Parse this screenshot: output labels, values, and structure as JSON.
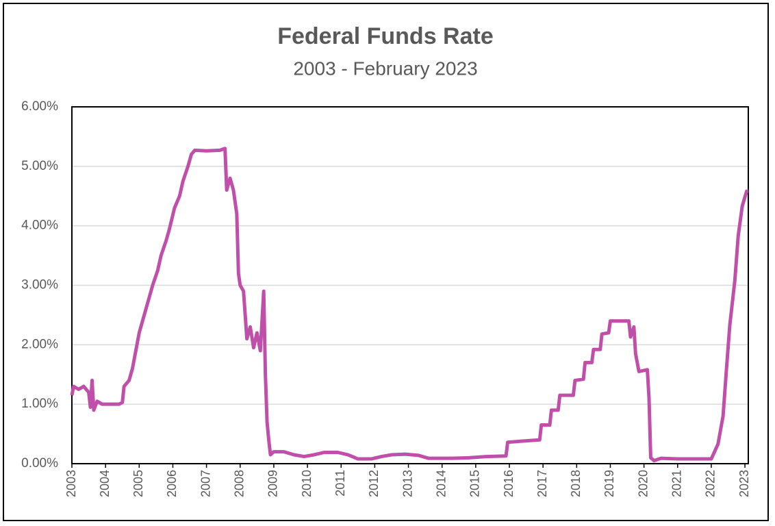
{
  "chart_data": {
    "type": "line",
    "title": "Federal Funds Rate",
    "subtitle": "2003 - February 2023",
    "x": [
      2003.0,
      2003.05,
      2003.2,
      2003.35,
      2003.5,
      2003.55,
      2003.6,
      2003.65,
      2003.75,
      2003.9,
      2004.2,
      2004.4,
      2004.5,
      2004.55,
      2004.7,
      2004.8,
      2004.9,
      2005.0,
      2005.1,
      2005.2,
      2005.3,
      2005.4,
      2005.55,
      2005.65,
      2005.8,
      2005.9,
      2006.05,
      2006.2,
      2006.3,
      2006.45,
      2006.55,
      2006.65,
      2007.0,
      2007.4,
      2007.55,
      2007.6,
      2007.7,
      2007.8,
      2007.9,
      2007.95,
      2008.0,
      2008.1,
      2008.2,
      2008.3,
      2008.4,
      2008.5,
      2008.6,
      2008.7,
      2008.75,
      2008.8,
      2008.85,
      2008.9,
      2009.0,
      2009.3,
      2009.6,
      2009.9,
      2010.2,
      2010.5,
      2010.9,
      2011.2,
      2011.5,
      2011.9,
      2012.2,
      2012.5,
      2012.9,
      2013.3,
      2013.6,
      2013.9,
      2014.3,
      2014.8,
      2015.3,
      2015.9,
      2015.95,
      2016.4,
      2016.9,
      2016.95,
      2017.2,
      2017.25,
      2017.45,
      2017.5,
      2017.9,
      2017.95,
      2018.2,
      2018.25,
      2018.45,
      2018.5,
      2018.7,
      2018.75,
      2018.95,
      2019.0,
      2019.55,
      2019.6,
      2019.7,
      2019.75,
      2019.85,
      2020.1,
      2020.15,
      2020.2,
      2020.3,
      2020.5,
      2021.0,
      2021.5,
      2022.0,
      2022.2,
      2022.35,
      2022.45,
      2022.55,
      2022.7,
      2022.8,
      2022.92,
      2023.05,
      2023.1
    ],
    "series": [
      {
        "name": "Federal Funds Rate",
        "color": "#bf4fa8",
        "values": [
          1.15,
          1.3,
          1.25,
          1.3,
          1.2,
          0.95,
          1.4,
          0.9,
          1.05,
          1.0,
          1.0,
          1.0,
          1.03,
          1.3,
          1.4,
          1.6,
          1.9,
          2.2,
          2.4,
          2.6,
          2.8,
          3.0,
          3.25,
          3.5,
          3.75,
          3.95,
          4.3,
          4.5,
          4.75,
          5.0,
          5.2,
          5.27,
          5.26,
          5.27,
          5.3,
          4.6,
          4.8,
          4.6,
          4.2,
          3.2,
          3.0,
          2.9,
          2.1,
          2.3,
          1.95,
          2.2,
          1.9,
          2.9,
          1.5,
          0.7,
          0.4,
          0.15,
          0.2,
          0.2,
          0.15,
          0.12,
          0.15,
          0.19,
          0.19,
          0.15,
          0.08,
          0.08,
          0.12,
          0.15,
          0.16,
          0.14,
          0.09,
          0.09,
          0.09,
          0.1,
          0.12,
          0.13,
          0.36,
          0.38,
          0.4,
          0.65,
          0.65,
          0.9,
          0.9,
          1.15,
          1.15,
          1.4,
          1.42,
          1.7,
          1.7,
          1.92,
          1.92,
          2.18,
          2.2,
          2.4,
          2.4,
          2.13,
          2.3,
          1.85,
          1.55,
          1.58,
          1.1,
          0.1,
          0.05,
          0.09,
          0.08,
          0.08,
          0.08,
          0.33,
          0.8,
          1.58,
          2.33,
          3.08,
          3.83,
          4.33,
          4.58,
          4.58
        ]
      }
    ],
    "xlim": [
      2003,
      2023.1
    ],
    "xticks": [
      2003,
      2004,
      2005,
      2006,
      2007,
      2008,
      2009,
      2010,
      2011,
      2012,
      2013,
      2014,
      2015,
      2016,
      2017,
      2018,
      2019,
      2020,
      2021,
      2022,
      2023
    ],
    "ylim": [
      0,
      6
    ],
    "yticks": [
      {
        "value": 0,
        "label": "0.00%"
      },
      {
        "value": 1,
        "label": "1.00%"
      },
      {
        "value": 2,
        "label": "2.00%"
      },
      {
        "value": 3,
        "label": "3.00%"
      },
      {
        "value": 4,
        "label": "4.00%"
      },
      {
        "value": 5,
        "label": "5.00%"
      },
      {
        "value": 6,
        "label": "6.00%"
      }
    ],
    "grid": true
  }
}
